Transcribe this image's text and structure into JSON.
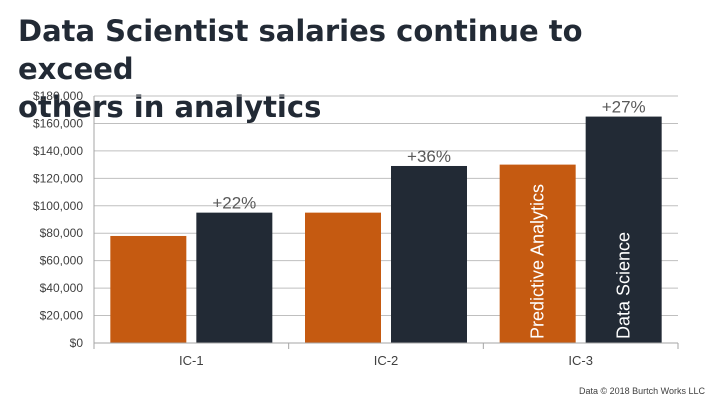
{
  "title_lines": [
    "Data Scientist salaries continue to exceed",
    "others in analytics"
  ],
  "footer": "Data © 2018 Burtch Works LLC",
  "colors": {
    "predictive": "#C55A11",
    "data_science": "#222A35",
    "grid": "#BFBFBF",
    "text": "#404040",
    "title": "#222A35"
  },
  "chart_data": {
    "type": "bar",
    "categories": [
      "IC-1",
      "IC-2",
      "IC-3"
    ],
    "series": [
      {
        "name": "Predictive Analytics",
        "values": [
          78000,
          95000,
          130000
        ]
      },
      {
        "name": "Data Science",
        "values": [
          95000,
          129000,
          165000
        ]
      }
    ],
    "y_tick_values": [
      0,
      20000,
      40000,
      60000,
      80000,
      100000,
      120000,
      140000,
      160000,
      180000
    ],
    "y_tick_labels": [
      "$0",
      "$20,000",
      "$40,000",
      "$60,000",
      "$80,000",
      "$100,000",
      "$120,000",
      "$140,000",
      "$160,000",
      "$180,000"
    ],
    "ylim": [
      0,
      180000
    ],
    "annotations": [
      "+22%",
      "+36%",
      "+27%"
    ],
    "grid": true,
    "legend": "series names written vertically inside the IC-3 bars"
  }
}
